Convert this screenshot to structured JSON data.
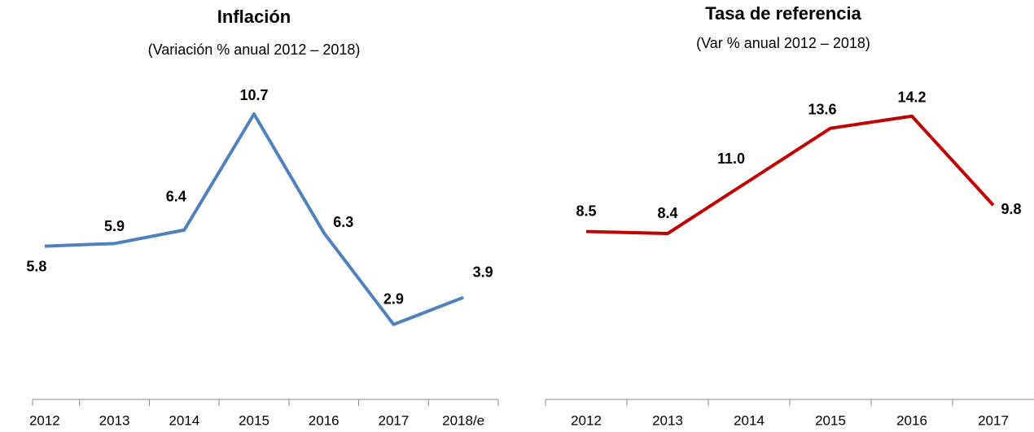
{
  "chart_data": [
    {
      "type": "line",
      "title": "Inflación",
      "subtitle": "(Variación % anual 2012 – 2018)",
      "categories": [
        "2012",
        "2013",
        "2014",
        "2015",
        "2016",
        "2017",
        "2018/e"
      ],
      "values": [
        5.8,
        5.9,
        6.4,
        10.7,
        6.3,
        2.9,
        3.9
      ],
      "color": "#4f81bd",
      "ylim": [
        0,
        12
      ]
    },
    {
      "type": "line",
      "title": "Tasa de referencia",
      "subtitle": "(Var % anual 2012 – 2018)",
      "categories": [
        "2012",
        "2013",
        "2014",
        "2015",
        "2016",
        "2017"
      ],
      "values": [
        8.5,
        8.4,
        11.0,
        13.6,
        14.2,
        9.8
      ],
      "value_labels": [
        "8.5",
        "8.4",
        "11.0",
        "13.6",
        "14.2",
        "9.8"
      ],
      "color": "#c00000",
      "ylim": [
        0,
        16
      ]
    }
  ]
}
